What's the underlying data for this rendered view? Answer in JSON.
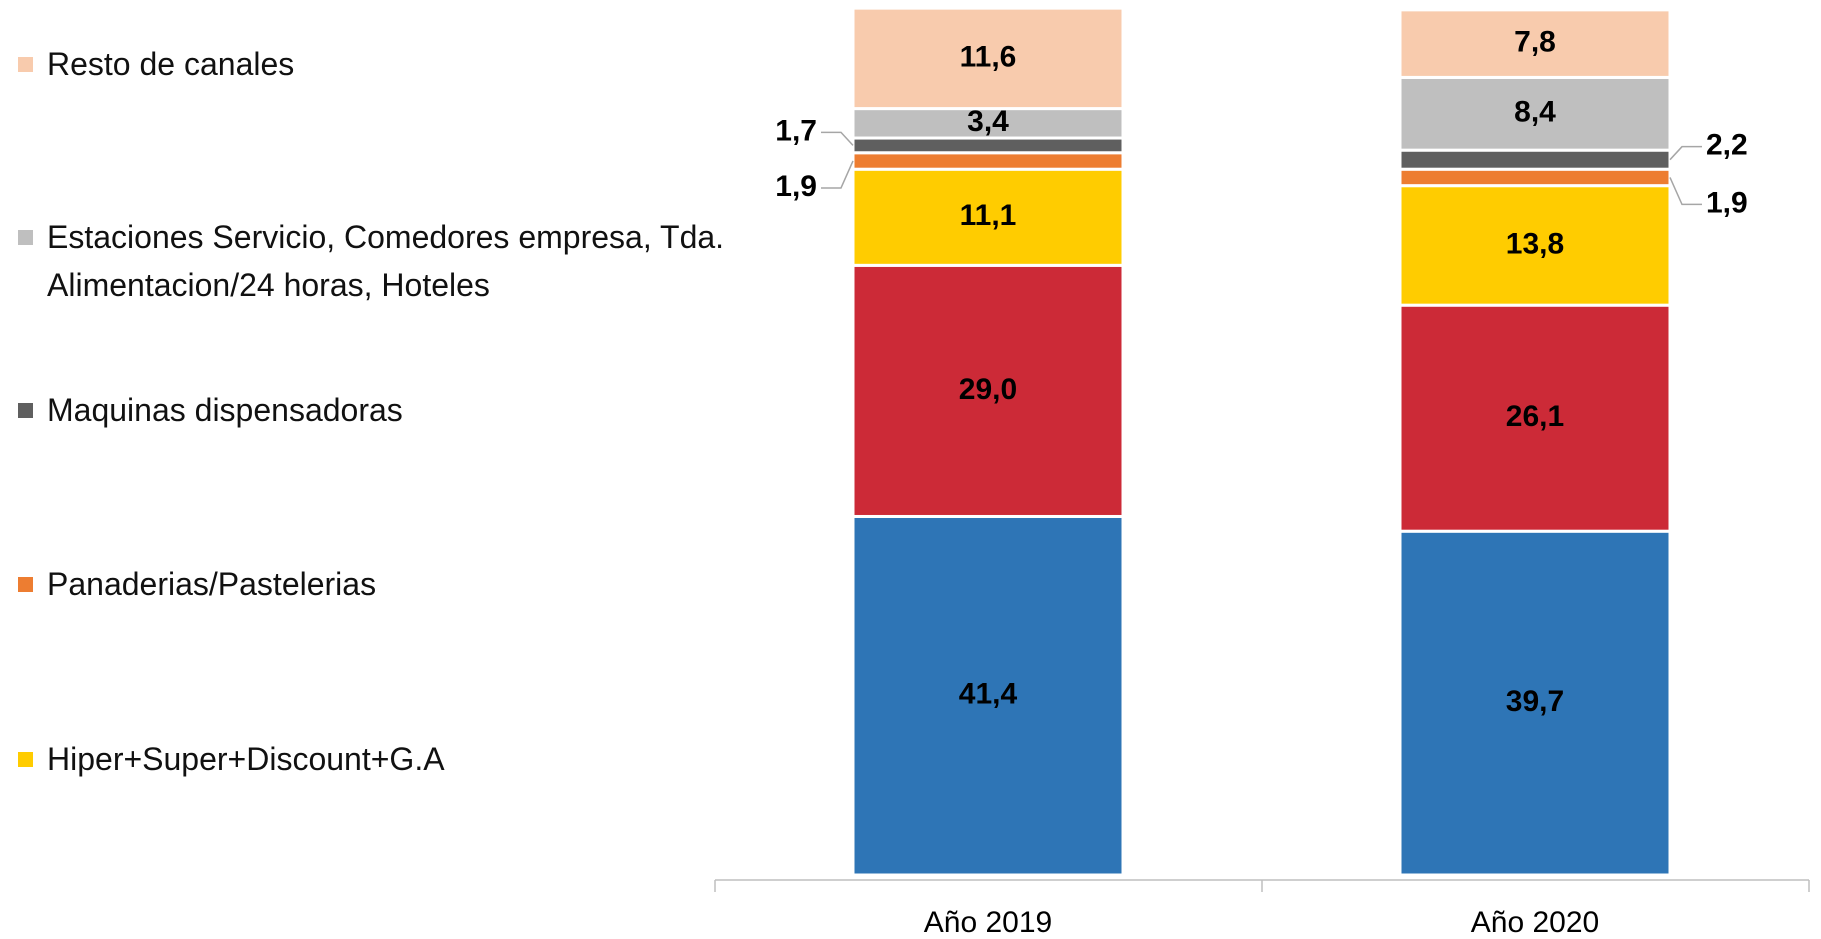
{
  "chart_data": {
    "type": "stacked_bar",
    "categories": [
      "Año 2019",
      "Año 2020"
    ],
    "ylim": [
      0,
      100
    ],
    "series": [
      {
        "color": "#2e75b6",
        "values": [
          41.4,
          39.7
        ],
        "value_labels": [
          "41,4",
          "39,7"
        ]
      },
      {
        "color": "#cc2a37",
        "values": [
          29.0,
          26.1
        ],
        "value_labels": [
          "29,0",
          "26,1"
        ]
      },
      {
        "name": "Hiper+Super+Discount+G.A",
        "color": "#ffcc00",
        "values": [
          11.1,
          13.8
        ],
        "value_labels": [
          "11,1",
          "13,8"
        ]
      },
      {
        "name": "Panaderias/Pastelerias",
        "color": "#ed7d31",
        "values": [
          1.9,
          1.9
        ],
        "value_labels": [
          "1,9",
          "1,9"
        ]
      },
      {
        "name": "Maquinas dispensadoras",
        "color": "#5f5f5f",
        "values": [
          1.7,
          2.2
        ],
        "value_labels": [
          "1,7",
          "2,2"
        ]
      },
      {
        "name": "Estaciones Servicio, Comedores empresa, Tda. Alimentacion/24 horas, Hoteles",
        "color": "#bfbfbf",
        "values": [
          3.4,
          8.4
        ],
        "value_labels": [
          "3,4",
          "8,4"
        ]
      },
      {
        "name": "Resto de canales",
        "color": "#f8cbad",
        "values": [
          11.6,
          7.8
        ],
        "value_labels": [
          "11,6",
          "7,8"
        ]
      }
    ]
  }
}
